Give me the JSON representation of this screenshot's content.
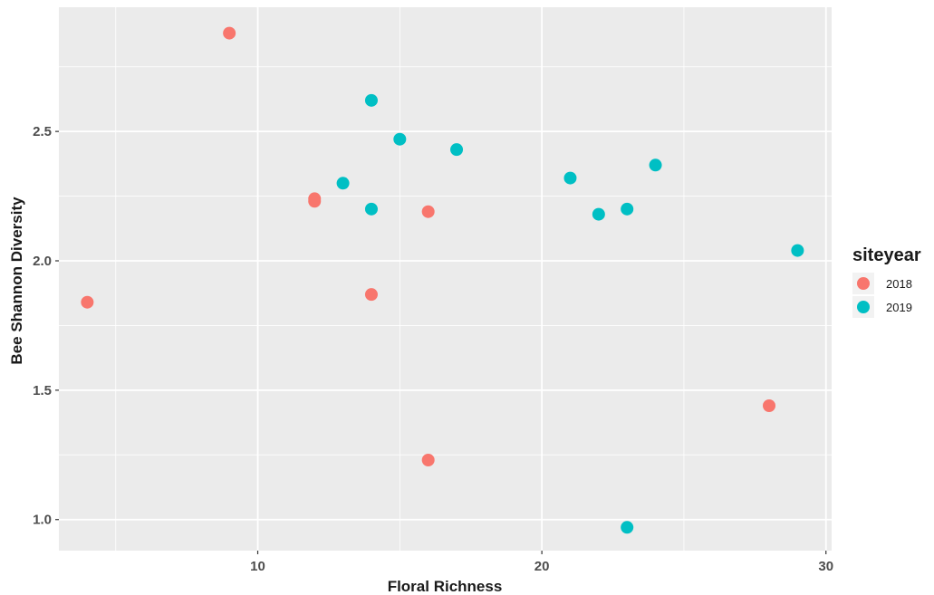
{
  "chart_data": {
    "type": "scatter",
    "title": "",
    "xlabel": "Floral Richness",
    "ylabel": "Bee Shannon Diversity",
    "xlim": [
      3.0,
      30.2
    ],
    "ylim": [
      0.88,
      2.98
    ],
    "x_ticks": [
      10,
      20,
      30
    ],
    "y_ticks": [
      1.0,
      1.5,
      2.0,
      2.5
    ],
    "x_tick_labels": [
      "10",
      "20",
      "30"
    ],
    "y_tick_labels": [
      "1.0",
      "1.5",
      "2.0",
      "2.5"
    ],
    "grid": true,
    "legend": {
      "title": "siteyear",
      "position": "right"
    },
    "series": [
      {
        "name": "2018",
        "color": "#F8766D",
        "points": [
          {
            "x": 4,
            "y": 1.84
          },
          {
            "x": 9,
            "y": 2.88
          },
          {
            "x": 12,
            "y": 2.24
          },
          {
            "x": 12,
            "y": 2.23
          },
          {
            "x": 14,
            "y": 1.87
          },
          {
            "x": 16,
            "y": 2.19
          },
          {
            "x": 16,
            "y": 1.23
          },
          {
            "x": 28,
            "y": 1.44
          }
        ]
      },
      {
        "name": "2019",
        "color": "#00BFC4",
        "points": [
          {
            "x": 13,
            "y": 2.3
          },
          {
            "x": 14,
            "y": 2.62
          },
          {
            "x": 14,
            "y": 2.2
          },
          {
            "x": 15,
            "y": 2.47
          },
          {
            "x": 17,
            "y": 2.43
          },
          {
            "x": 21,
            "y": 2.32
          },
          {
            "x": 22,
            "y": 2.18
          },
          {
            "x": 23,
            "y": 2.2
          },
          {
            "x": 23,
            "y": 0.97
          },
          {
            "x": 24,
            "y": 2.37
          },
          {
            "x": 29,
            "y": 2.04
          }
        ]
      }
    ]
  }
}
